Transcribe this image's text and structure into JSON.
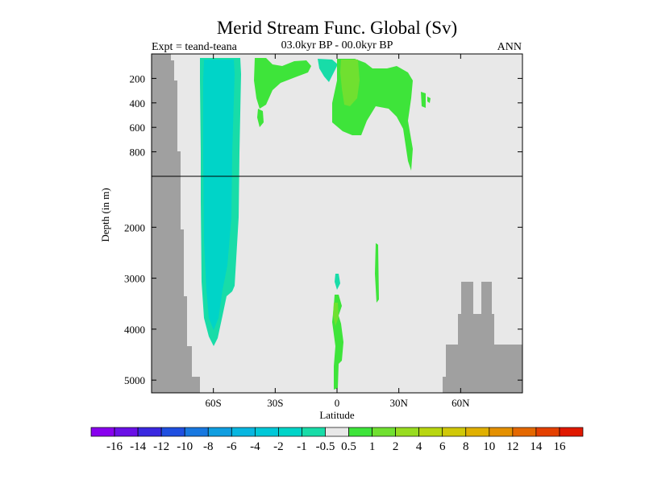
{
  "chart_data": {
    "type": "heatmap",
    "title": "Merid Stream Func. Global (Sv)",
    "left_string": "Expt = teand-teana",
    "center_string": "03.0kyr BP - 00.0kyr BP",
    "right_string": "ANN",
    "xlabel": "Latitude",
    "ylabel": "Depth (in m)",
    "x_range": [
      -90,
      90
    ],
    "y_range_upper": [
      0,
      1000
    ],
    "y_range_lower": [
      1000,
      5250
    ],
    "x_ticks": [
      "60S",
      "30S",
      "0",
      "30N",
      "60N"
    ],
    "x_tick_values": [
      -60,
      -30,
      0,
      30,
      60
    ],
    "y_ticks_upper": [
      "200",
      "400",
      "600",
      "800"
    ],
    "y_tick_values_upper": [
      200,
      400,
      600,
      800
    ],
    "y_ticks_lower": [
      "2000",
      "3000",
      "4000",
      "5000"
    ],
    "y_tick_values_lower": [
      2000,
      3000,
      4000,
      5000
    ],
    "background_color": "#e8e8e8",
    "land_color": "#a0a0a0",
    "colorbar": {
      "labels": [
        "-16",
        "-14",
        "-12",
        "-10",
        "-8",
        "-6",
        "-4",
        "-2",
        "-1",
        "-0.5",
        "0.5",
        "1",
        "2",
        "4",
        "6",
        "8",
        "10",
        "12",
        "14",
        "16"
      ],
      "colors": [
        "#8800ee",
        "#6a10e6",
        "#3a28e0",
        "#1f4fe0",
        "#1878e0",
        "#109ee0",
        "#08b6e0",
        "#00c8d8",
        "#00d4c8",
        "#18dca8",
        "#e8e8e8",
        "#3ee43a",
        "#70e030",
        "#98dc20",
        "#b8d610",
        "#d0c808",
        "#e0b000",
        "#e49000",
        "#e46800",
        "#e44000",
        "#e01800"
      ]
    },
    "regions": [
      {
        "name": "southern-ocean-cell",
        "value_bin": "-1 to -0.5",
        "lat_range": [
          -66,
          -54
        ],
        "depth_range": [
          80,
          4300
        ]
      },
      {
        "name": "upper-southern-cell",
        "value_bin": "0.5 to 1",
        "lat_range": [
          -40,
          -17
        ],
        "depth_range": [
          50,
          300
        ]
      },
      {
        "name": "equatorial-negative-cell",
        "value_bin": "-1 to -0.5",
        "lat_range": [
          -9,
          0
        ],
        "depth_range": [
          50,
          150
        ]
      },
      {
        "name": "northern-tropical-cell",
        "value_bin": "0.5 to 1",
        "lat_range": [
          0,
          37
        ],
        "depth_range": [
          50,
          900
        ]
      },
      {
        "name": "equatorial-core",
        "value_bin": "1 to 2",
        "lat_range": [
          2,
          9
        ],
        "depth_range": [
          50,
          350
        ]
      },
      {
        "name": "deep-equatorial-cell",
        "value_bin": "0.5 to 1",
        "lat_range": [
          -1,
          3
        ],
        "depth_range": [
          3300,
          5250
        ]
      },
      {
        "name": "deep-equatorial-negative",
        "value_bin": "-1 to -0.5",
        "lat_range": [
          -1,
          1
        ],
        "depth_range": [
          2900,
          3100
        ]
      }
    ]
  }
}
